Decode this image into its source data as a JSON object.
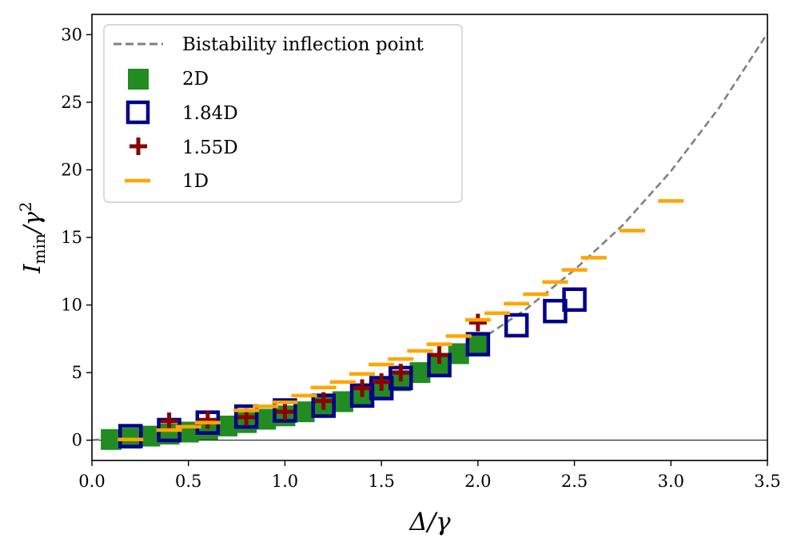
{
  "chart_data": {
    "type": "scatter",
    "xlabel": "Δ/γ",
    "ylabel_main": "I",
    "ylabel_sub": "min",
    "ylabel_tail": "/γ",
    "ylabel_sup": "2",
    "xlim": [
      0.0,
      3.5
    ],
    "ylim": [
      -1.5,
      31.5
    ],
    "xticks": [
      0.0,
      0.5,
      1.0,
      1.5,
      2.0,
      2.5,
      3.0,
      3.5
    ],
    "xtick_labels": [
      "0.0",
      "0.5",
      "1.0",
      "1.5",
      "2.0",
      "2.5",
      "3.0",
      "3.5"
    ],
    "yticks": [
      0,
      5,
      10,
      15,
      20,
      25,
      30
    ],
    "ytick_labels": [
      "0",
      "5",
      "10",
      "15",
      "20",
      "25",
      "30"
    ],
    "curve": {
      "name": "Bistability inflection point",
      "color": "#808080",
      "x": [
        0.0,
        0.25,
        0.5,
        0.75,
        1.0,
        1.25,
        1.5,
        1.75,
        2.0,
        2.25,
        2.5,
        2.75,
        3.0,
        3.25,
        3.5
      ],
      "y": [
        0.0,
        0.3,
        0.75,
        1.35,
        2.1,
        2.95,
        3.95,
        5.25,
        7.3,
        9.7,
        12.6,
        15.9,
        19.9,
        24.6,
        30.1
      ]
    },
    "series": [
      {
        "name": "2D",
        "marker": "filled-square",
        "color": "#228b22",
        "x": [
          0.1,
          0.2,
          0.3,
          0.4,
          0.5,
          0.6,
          0.7,
          0.8,
          0.9,
          1.0,
          1.1,
          1.2,
          1.3,
          1.4,
          1.5,
          1.6,
          1.7,
          1.8,
          1.9,
          2.0
        ],
        "y": [
          0.05,
          0.15,
          0.3,
          0.45,
          0.6,
          0.8,
          1.05,
          1.3,
          1.55,
          1.8,
          2.1,
          2.45,
          2.85,
          3.3,
          3.85,
          4.4,
          5.0,
          5.6,
          6.4,
          7.2
        ]
      },
      {
        "name": "1.84D",
        "marker": "open-square",
        "color": "#00008b",
        "x": [
          0.2,
          0.4,
          0.6,
          0.8,
          1.0,
          1.2,
          1.4,
          1.5,
          1.6,
          1.8,
          2.0,
          2.2,
          2.4,
          2.5
        ],
        "y": [
          0.3,
          0.75,
          1.3,
          1.75,
          2.2,
          2.55,
          3.3,
          3.85,
          4.6,
          5.55,
          7.1,
          8.5,
          9.55,
          10.4
        ]
      },
      {
        "name": "1.55D",
        "marker": "plus",
        "color": "#8b0000",
        "x": [
          0.4,
          0.6,
          0.8,
          1.0,
          1.2,
          1.4,
          1.5,
          1.6,
          1.8,
          2.0
        ],
        "y": [
          1.4,
          1.5,
          1.7,
          2.1,
          2.9,
          3.85,
          4.3,
          5.0,
          6.3,
          8.7
        ]
      },
      {
        "name": "1D",
        "marker": "hline",
        "color": "#ffa500",
        "x": [
          0.2,
          0.4,
          0.5,
          0.6,
          0.8,
          0.9,
          1.0,
          1.1,
          1.2,
          1.3,
          1.4,
          1.5,
          1.6,
          1.7,
          1.8,
          1.9,
          2.0,
          2.1,
          2.2,
          2.3,
          2.4,
          2.5,
          2.6,
          2.8,
          3.0
        ],
        "y": [
          0.05,
          0.75,
          1.0,
          1.3,
          2.2,
          2.5,
          2.8,
          3.3,
          3.9,
          4.3,
          4.9,
          5.6,
          6.0,
          6.6,
          7.1,
          7.7,
          8.9,
          9.4,
          10.1,
          10.8,
          11.7,
          12.6,
          13.5,
          15.5,
          17.7
        ]
      }
    ],
    "zero_line": true,
    "legend_position": "top-left"
  }
}
